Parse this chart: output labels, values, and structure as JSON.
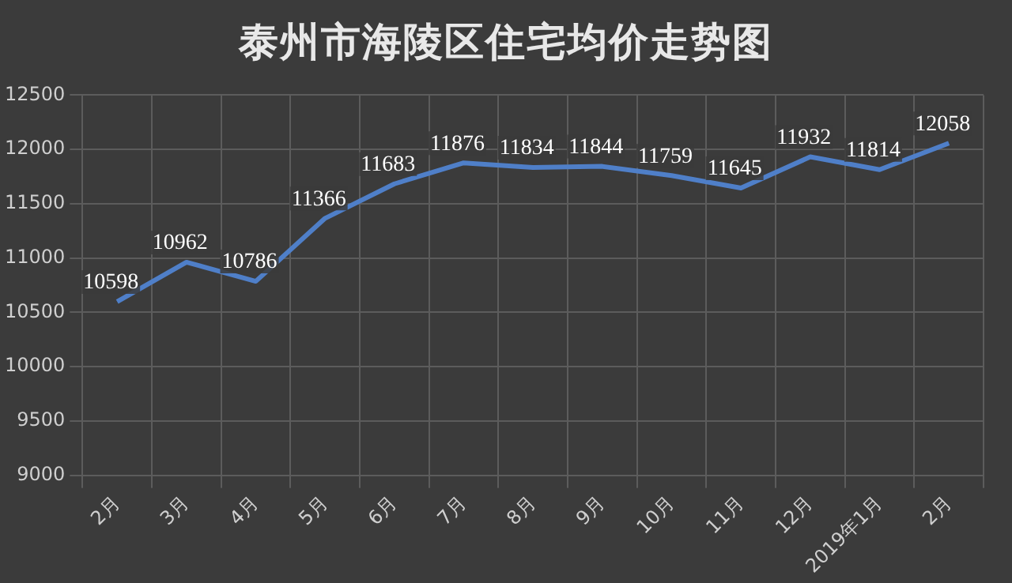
{
  "chart_data": {
    "type": "line",
    "title": "泰州市海陵区住宅均价走势图",
    "categories": [
      "2月",
      "3月",
      "4月",
      "5月",
      "6月",
      "7月",
      "8月",
      "9月",
      "10月",
      "11月",
      "12月",
      "2019年1月",
      "2月"
    ],
    "series": [
      {
        "color": "#4f7fc8",
        "values": [
          10598,
          10962,
          10786,
          11366,
          11683,
          11876,
          11834,
          11844,
          11759,
          11645,
          11932,
          11814,
          12058
        ]
      }
    ],
    "ylim": [
      9000,
      12500
    ],
    "yticks": [
      9000,
      9500,
      10000,
      10500,
      11000,
      11500,
      12000,
      12500
    ],
    "grid": true,
    "legend": false,
    "marker": "none",
    "line_style": "solid",
    "data_labels": true
  }
}
